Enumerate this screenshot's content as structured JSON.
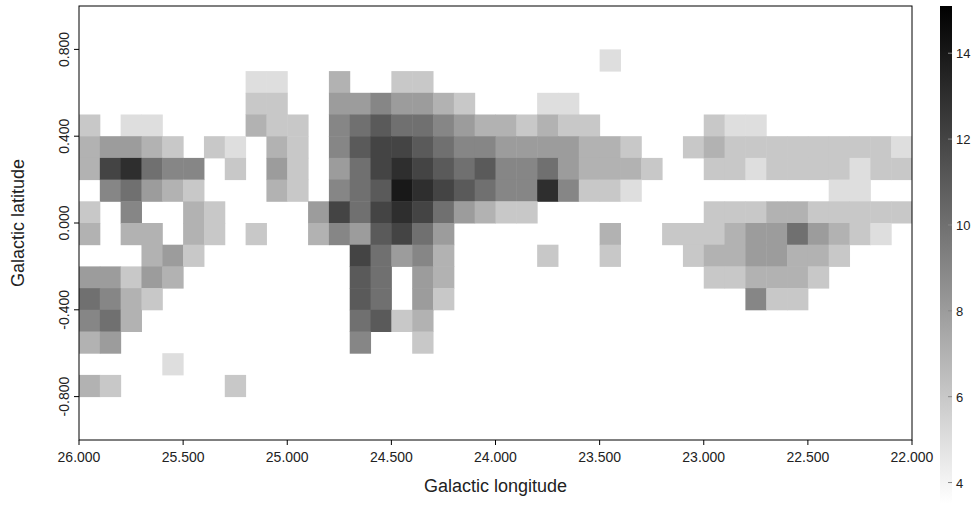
{
  "chart_data": {
    "type": "heatmap",
    "x_label": "Galactic longitude",
    "y_label": "Galactic latitude",
    "xlim": [
      26,
      22
    ],
    "ylim": [
      -1,
      1
    ],
    "xticks": [
      {
        "value": 26,
        "label": "26.000"
      },
      {
        "value": 25.5,
        "label": "25.500"
      },
      {
        "value": 25,
        "label": "25.000"
      },
      {
        "value": 24.5,
        "label": "24.500"
      },
      {
        "value": 24,
        "label": "24.000"
      },
      {
        "value": 23.5,
        "label": "23.500"
      },
      {
        "value": 23,
        "label": "23.000"
      },
      {
        "value": 22.5,
        "label": "22.500"
      },
      {
        "value": 22,
        "label": "22.000"
      }
    ],
    "yticks": [
      {
        "value": 0.8,
        "label": "0.800"
      },
      {
        "value": 0.4,
        "label": "0.400"
      },
      {
        "value": 0,
        "label": "0.000"
      },
      {
        "value": -0.4,
        "label": "-0.400"
      },
      {
        "value": -0.8,
        "label": "-0.800"
      }
    ],
    "zlim": [
      3.5,
      15.1
    ],
    "zticks": [
      4,
      6,
      8,
      10,
      12,
      14
    ],
    "grid": false,
    "x": [
      25.95,
      25.85,
      25.75,
      25.65,
      25.55,
      25.45,
      25.35,
      25.25,
      25.15,
      25.05,
      24.95,
      24.85,
      24.75,
      24.65,
      24.55,
      24.45,
      24.35,
      24.25,
      24.15,
      24.05,
      23.95,
      23.85,
      23.75,
      23.65,
      23.55,
      23.45,
      23.35,
      23.25,
      23.15,
      23.05,
      22.95,
      22.85,
      22.75,
      22.65,
      22.55,
      22.45,
      22.35,
      22.25,
      22.15,
      22.05
    ],
    "y": [
      0.95,
      0.85,
      0.75,
      0.65,
      0.55,
      0.45,
      0.35,
      0.25,
      0.15,
      0.05,
      -0.05,
      -0.15,
      -0.25,
      -0.35,
      -0.45,
      -0.55,
      -0.65,
      -0.75,
      -0.85,
      -0.95
    ],
    "z": [
      [
        null,
        null,
        null,
        null,
        null,
        null,
        null,
        null,
        null,
        null,
        null,
        null,
        null,
        null,
        null,
        null,
        null,
        null,
        null,
        null,
        null,
        null,
        null,
        null,
        null,
        null,
        null,
        null,
        null,
        null,
        null,
        null,
        null,
        null,
        null,
        null,
        null,
        null,
        null,
        null
      ],
      [
        null,
        null,
        null,
        null,
        null,
        null,
        null,
        null,
        null,
        null,
        null,
        null,
        null,
        null,
        null,
        null,
        null,
        null,
        null,
        null,
        null,
        null,
        null,
        null,
        null,
        null,
        null,
        null,
        null,
        null,
        null,
        null,
        null,
        null,
        null,
        null,
        null,
        null,
        null,
        null
      ],
      [
        null,
        null,
        null,
        null,
        null,
        null,
        null,
        null,
        null,
        null,
        null,
        null,
        null,
        null,
        null,
        null,
        null,
        null,
        null,
        null,
        null,
        null,
        null,
        null,
        null,
        5,
        null,
        null,
        null,
        null,
        null,
        null,
        null,
        null,
        null,
        null,
        null,
        null,
        null,
        null
      ],
      [
        null,
        null,
        null,
        null,
        null,
        null,
        null,
        null,
        5,
        5,
        null,
        null,
        7,
        null,
        null,
        6,
        6,
        null,
        null,
        null,
        null,
        null,
        null,
        null,
        null,
        null,
        null,
        null,
        null,
        null,
        null,
        null,
        null,
        null,
        null,
        null,
        null,
        null,
        null,
        null
      ],
      [
        null,
        null,
        null,
        null,
        null,
        null,
        null,
        null,
        6,
        6,
        null,
        null,
        8,
        8,
        9,
        8,
        8,
        7,
        6,
        null,
        null,
        null,
        5,
        5,
        null,
        null,
        null,
        null,
        null,
        null,
        null,
        null,
        null,
        null,
        null,
        null,
        null,
        null,
        null,
        null
      ],
      [
        6,
        null,
        5,
        5,
        null,
        null,
        null,
        null,
        7,
        6,
        6,
        null,
        9,
        10,
        11,
        10,
        10,
        9,
        8,
        7,
        7,
        6,
        7,
        6,
        6,
        null,
        null,
        null,
        null,
        null,
        6,
        5,
        5,
        null,
        null,
        null,
        null,
        null,
        null,
        null
      ],
      [
        7,
        8,
        8,
        7,
        6,
        null,
        6,
        5,
        null,
        7,
        6,
        null,
        9,
        11,
        12,
        12,
        11,
        10,
        9,
        9,
        8,
        8,
        8,
        8,
        7,
        7,
        6,
        null,
        null,
        6,
        7,
        6,
        6,
        6,
        6,
        6,
        6,
        6,
        6,
        5
      ],
      [
        7,
        12,
        13,
        10,
        9,
        9,
        null,
        6,
        null,
        8,
        6,
        null,
        8,
        10,
        12,
        13,
        12,
        11,
        10,
        11,
        9,
        9,
        10,
        8,
        7,
        7,
        7,
        6,
        null,
        null,
        6,
        6,
        5,
        6,
        6,
        6,
        6,
        5,
        6,
        6
      ],
      [
        null,
        9,
        10,
        8,
        7,
        6,
        null,
        null,
        null,
        7,
        6,
        null,
        9,
        10,
        11,
        14,
        13,
        12,
        11,
        10,
        9,
        9,
        13,
        9,
        6,
        6,
        5,
        null,
        null,
        null,
        null,
        null,
        null,
        null,
        null,
        null,
        5,
        5,
        null,
        null
      ],
      [
        6,
        null,
        9,
        null,
        null,
        7,
        6,
        null,
        null,
        null,
        null,
        8,
        12,
        10,
        12,
        13,
        12,
        10,
        8,
        7,
        6,
        6,
        null,
        null,
        null,
        null,
        null,
        null,
        null,
        null,
        6,
        6,
        6,
        7,
        7,
        6,
        6,
        6,
        6,
        6
      ],
      [
        7,
        null,
        7,
        7,
        null,
        7,
        6,
        null,
        6,
        null,
        null,
        7,
        9,
        8,
        11,
        12,
        10,
        8,
        null,
        null,
        null,
        null,
        null,
        null,
        null,
        7,
        null,
        null,
        6,
        6,
        6,
        7,
        8,
        8,
        10,
        8,
        7,
        6,
        5,
        null
      ],
      [
        null,
        null,
        null,
        7,
        8,
        6,
        null,
        null,
        null,
        null,
        null,
        null,
        null,
        12,
        10,
        8,
        9,
        7,
        null,
        null,
        null,
        null,
        6,
        null,
        null,
        6,
        null,
        null,
        null,
        6,
        7,
        7,
        8,
        8,
        7,
        7,
        6,
        null,
        null,
        null
      ],
      [
        8,
        8,
        6,
        8,
        7,
        null,
        null,
        null,
        null,
        null,
        null,
        null,
        null,
        11,
        10,
        null,
        8,
        7,
        null,
        null,
        null,
        null,
        null,
        null,
        null,
        null,
        null,
        null,
        null,
        null,
        6,
        6,
        7,
        7,
        7,
        6,
        null,
        null,
        null,
        null
      ],
      [
        10,
        9,
        7,
        6,
        null,
        null,
        null,
        null,
        null,
        null,
        null,
        null,
        null,
        11,
        10,
        null,
        8,
        6,
        null,
        null,
        null,
        null,
        null,
        null,
        null,
        null,
        null,
        null,
        null,
        null,
        null,
        null,
        9,
        6,
        6,
        null,
        null,
        null,
        null,
        null
      ],
      [
        9,
        10,
        7,
        null,
        null,
        null,
        null,
        null,
        null,
        null,
        null,
        null,
        null,
        10,
        11,
        6,
        7,
        null,
        null,
        null,
        null,
        null,
        null,
        null,
        null,
        null,
        null,
        null,
        null,
        null,
        null,
        null,
        null,
        null,
        null,
        null,
        null,
        null,
        null,
        null
      ],
      [
        7,
        8,
        null,
        null,
        null,
        null,
        null,
        null,
        null,
        null,
        null,
        null,
        null,
        9,
        null,
        null,
        6,
        null,
        null,
        null,
        null,
        null,
        null,
        null,
        null,
        null,
        null,
        null,
        null,
        null,
        null,
        null,
        null,
        null,
        null,
        null,
        null,
        null,
        null,
        null
      ],
      [
        null,
        null,
        null,
        null,
        5,
        null,
        null,
        null,
        null,
        null,
        null,
        null,
        null,
        null,
        null,
        null,
        null,
        null,
        null,
        null,
        null,
        null,
        null,
        null,
        null,
        null,
        null,
        null,
        null,
        null,
        null,
        null,
        null,
        null,
        null,
        null,
        null,
        null,
        null,
        null
      ],
      [
        7,
        6,
        null,
        null,
        null,
        null,
        null,
        6,
        null,
        null,
        null,
        null,
        null,
        null,
        null,
        null,
        null,
        null,
        null,
        null,
        null,
        null,
        null,
        null,
        null,
        null,
        null,
        null,
        null,
        null,
        null,
        null,
        null,
        null,
        null,
        null,
        null,
        null,
        null,
        null
      ],
      [
        null,
        null,
        null,
        null,
        null,
        null,
        null,
        null,
        null,
        null,
        null,
        null,
        null,
        null,
        null,
        null,
        null,
        null,
        null,
        null,
        null,
        null,
        null,
        null,
        null,
        null,
        null,
        null,
        null,
        null,
        null,
        null,
        null,
        null,
        null,
        null,
        null,
        null,
        null,
        null
      ],
      [
        null,
        null,
        null,
        null,
        null,
        null,
        null,
        null,
        null,
        null,
        null,
        null,
        null,
        null,
        null,
        null,
        null,
        null,
        null,
        null,
        null,
        null,
        null,
        null,
        null,
        null,
        null,
        null,
        null,
        null,
        null,
        null,
        null,
        null,
        null,
        null,
        null,
        null,
        null,
        null
      ]
    ]
  }
}
